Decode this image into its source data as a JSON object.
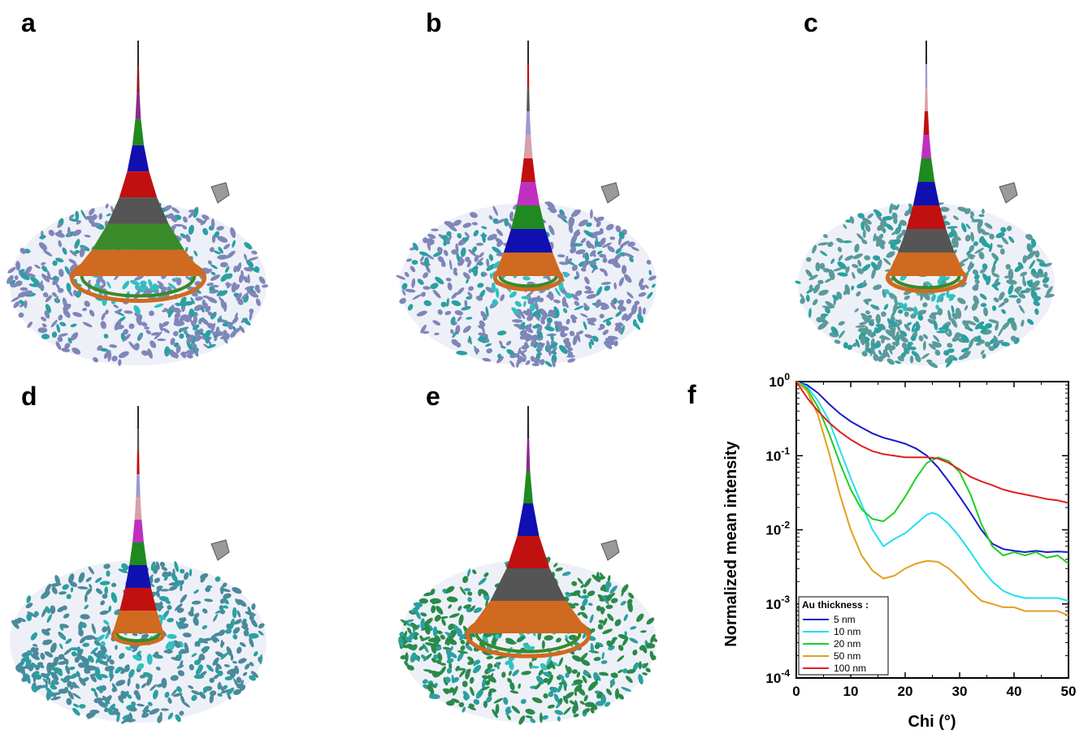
{
  "panels": {
    "a": "a",
    "b": "b",
    "c": "c",
    "d": "d",
    "e": "e",
    "f": "f"
  },
  "surfaces": [
    {
      "id": "a",
      "spike_colors": [
        "#2a2a2a",
        "#8e1a1a",
        "#8a2a8a",
        "#1f8a1f",
        "#1010b0",
        "#c01010",
        "#555555",
        "#3a8a2a",
        "#d06a20"
      ],
      "base_color": "#7f86b8",
      "cone_width": 0.24
    },
    {
      "id": "b",
      "spike_colors": [
        "#2a2a2a",
        "#c01010",
        "#555555",
        "#9a9ad0",
        "#d8a0a8",
        "#c01010",
        "#c030c0",
        "#1f8a1f",
        "#1010b0",
        "#d06a20"
      ],
      "base_color": "#7f86b8",
      "cone_width": 0.12
    },
    {
      "id": "c",
      "spike_colors": [
        "#2a2a2a",
        "#9a9ad0",
        "#d8a0a8",
        "#c01010",
        "#c030c0",
        "#1f8a1f",
        "#1010b0",
        "#c01010",
        "#555555",
        "#d06a20"
      ],
      "base_color": "#5a9a9a",
      "cone_width": 0.14
    },
    {
      "id": "d",
      "spike_colors": [
        "#2a2a2a",
        "#555555",
        "#c01010",
        "#9a9ad0",
        "#d8a0a8",
        "#c030c0",
        "#1f8a1f",
        "#1010b0",
        "#c01010",
        "#d06a20"
      ],
      "base_color": "#4a8a9a",
      "cone_width": 0.09
    },
    {
      "id": "e",
      "spike_colors": [
        "#2a2a2a",
        "#8a2a8a",
        "#1f8a1f",
        "#1010b0",
        "#c01010",
        "#555555",
        "#d06a20"
      ],
      "base_color": "#2a8a4a",
      "cone_width": 0.22
    }
  ],
  "chart_data": {
    "type": "line",
    "xlabel": "Chi (°)",
    "ylabel": "Normalized mean intensity",
    "xlim": [
      0,
      50
    ],
    "ylim": [
      0.0001,
      1
    ],
    "yscale": "log",
    "xticks": [
      "0",
      "10",
      "20",
      "30",
      "40",
      "50"
    ],
    "yticks": [
      {
        "base": "10",
        "exp": "0"
      },
      {
        "base": "10",
        "exp": "-1"
      },
      {
        "base": "10",
        "exp": "-2"
      },
      {
        "base": "10",
        "exp": "-3"
      },
      {
        "base": "10",
        "exp": "-4"
      }
    ],
    "legend_title": "Au thickness :",
    "legend_position": "bottom-left",
    "series": [
      {
        "name": "5 nm",
        "color": "#1a1ad0",
        "x": [
          0,
          2,
          4,
          6,
          8,
          10,
          12,
          14,
          16,
          18,
          20,
          22,
          24,
          26,
          28,
          30,
          32,
          34,
          36,
          38,
          40,
          42,
          44,
          46,
          48,
          50
        ],
        "y": [
          1,
          0.9,
          0.7,
          0.5,
          0.37,
          0.29,
          0.24,
          0.2,
          0.175,
          0.16,
          0.145,
          0.125,
          0.1,
          0.07,
          0.045,
          0.028,
          0.017,
          0.01,
          0.0065,
          0.0055,
          0.0052,
          0.005,
          0.0052,
          0.005,
          0.0051,
          0.005
        ]
      },
      {
        "name": "10 nm",
        "color": "#20e0f0",
        "x": [
          0,
          2,
          4,
          6,
          8,
          10,
          12,
          14,
          16,
          18,
          20,
          22,
          24,
          25,
          26,
          28,
          30,
          32,
          34,
          36,
          38,
          40,
          42,
          44,
          46,
          48,
          50
        ],
        "y": [
          1,
          0.85,
          0.55,
          0.3,
          0.12,
          0.05,
          0.022,
          0.01,
          0.006,
          0.0075,
          0.009,
          0.012,
          0.016,
          0.017,
          0.016,
          0.012,
          0.008,
          0.005,
          0.003,
          0.002,
          0.0015,
          0.0013,
          0.0012,
          0.0012,
          0.0012,
          0.0012,
          0.0011
        ]
      },
      {
        "name": "20 nm",
        "color": "#20d020",
        "x": [
          0,
          2,
          4,
          6,
          8,
          10,
          12,
          14,
          16,
          18,
          20,
          22,
          24,
          26,
          28,
          30,
          32,
          34,
          36,
          38,
          40,
          42,
          44,
          46,
          48,
          50
        ],
        "y": [
          1,
          0.8,
          0.45,
          0.2,
          0.08,
          0.035,
          0.019,
          0.014,
          0.013,
          0.017,
          0.028,
          0.05,
          0.08,
          0.095,
          0.085,
          0.06,
          0.03,
          0.012,
          0.006,
          0.0045,
          0.005,
          0.0045,
          0.005,
          0.0042,
          0.0045,
          0.0035
        ]
      },
      {
        "name": "50 nm",
        "color": "#e0a020",
        "x": [
          0,
          2,
          4,
          6,
          8,
          10,
          12,
          14,
          16,
          18,
          20,
          22,
          24,
          26,
          28,
          30,
          32,
          34,
          36,
          38,
          40,
          42,
          44,
          46,
          48,
          50
        ],
        "y": [
          1,
          0.75,
          0.35,
          0.11,
          0.03,
          0.01,
          0.0045,
          0.0028,
          0.0022,
          0.0024,
          0.003,
          0.0035,
          0.0038,
          0.0037,
          0.003,
          0.0022,
          0.0015,
          0.0011,
          0.001,
          0.0009,
          0.0009,
          0.0008,
          0.0008,
          0.0008,
          0.0008,
          0.0007
        ]
      },
      {
        "name": "100 nm",
        "color": "#e02020",
        "x": [
          0,
          2,
          4,
          6,
          8,
          10,
          12,
          14,
          16,
          18,
          20,
          22,
          24,
          26,
          28,
          30,
          32,
          34,
          36,
          38,
          40,
          42,
          44,
          46,
          48,
          50
        ],
        "y": [
          1,
          0.6,
          0.4,
          0.28,
          0.21,
          0.165,
          0.135,
          0.115,
          0.105,
          0.1,
          0.095,
          0.095,
          0.095,
          0.092,
          0.08,
          0.065,
          0.052,
          0.045,
          0.04,
          0.035,
          0.032,
          0.03,
          0.028,
          0.026,
          0.025,
          0.023
        ]
      }
    ]
  }
}
